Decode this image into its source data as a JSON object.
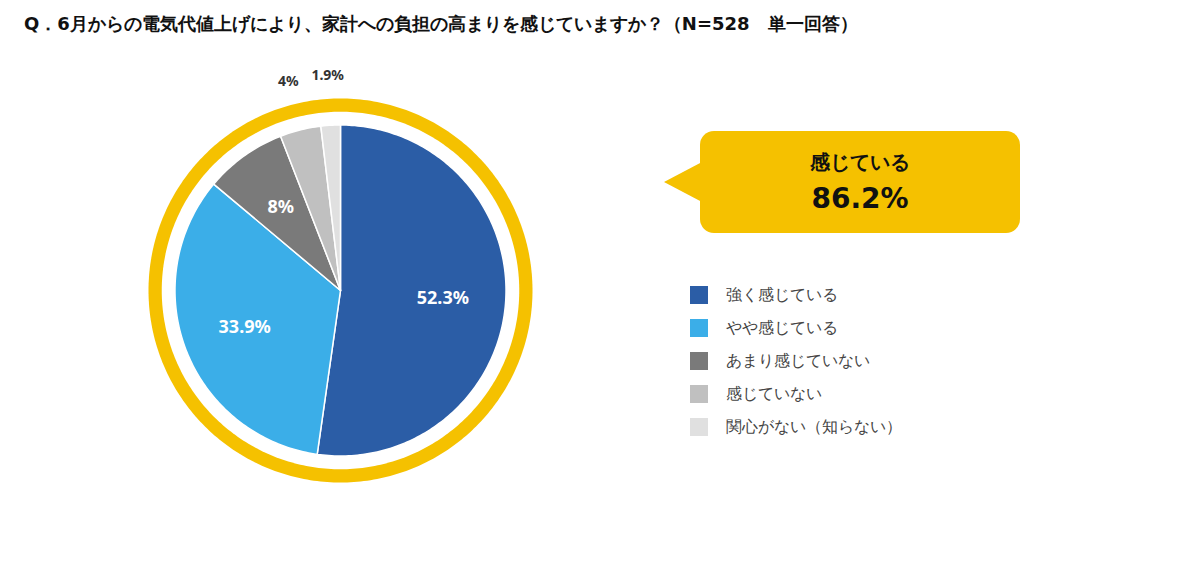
{
  "chart_data": {
    "type": "pie",
    "title": "Q．6月からの電気代値上げにより、家計への負担の高まりを感じていますか？（N=528　単一回答）",
    "categories": [
      "強く感じている",
      "やや感じている",
      "あまり感じていない",
      "感じていない",
      "関心がない（知らない）"
    ],
    "values": [
      52.3,
      33.9,
      8.0,
      4.0,
      1.9
    ],
    "value_labels": [
      "52.3%",
      "33.9%",
      "8%",
      "4%",
      "1.9%"
    ],
    "colors": [
      "#2B5DA6",
      "#3BAEE8",
      "#7A7A7A",
      "#C0C0C0",
      "#E0E0E0"
    ],
    "data_labels": true,
    "legend": "right",
    "annotations": [
      {
        "lines": [
          "感じている",
          "86.2%"
        ],
        "color": "#F5C100"
      }
    ]
  }
}
